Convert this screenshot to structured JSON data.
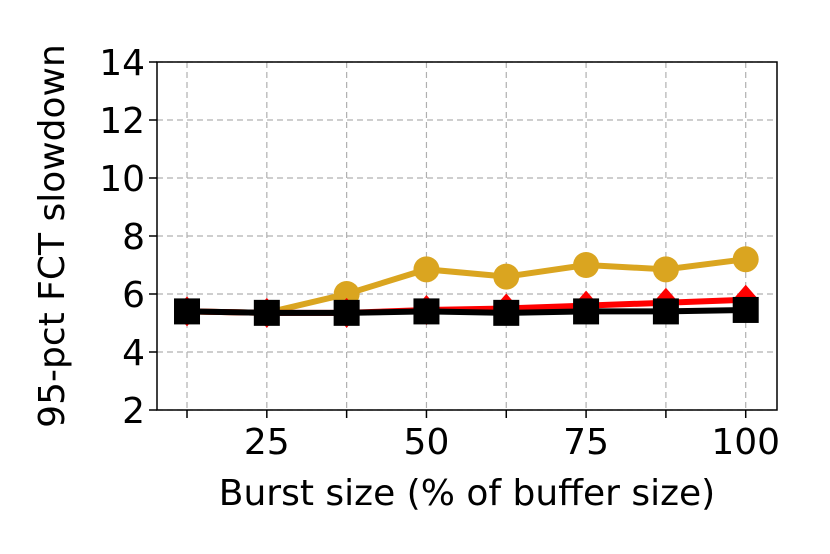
{
  "chart_data": {
    "type": "line",
    "x_label": "Burst size (% of buffer size)",
    "y_label": "95-pct FCT slowdown",
    "x": [
      12.5,
      25,
      37.5,
      50,
      62.5,
      75,
      87.5,
      100
    ],
    "series": [
      {
        "color": "#daa520",
        "marker": "circle",
        "values": [
          5.4,
          5.35,
          6.0,
          6.85,
          6.6,
          7.0,
          6.85,
          7.2
        ]
      },
      {
        "color": "#ff0000",
        "marker": "diamond",
        "values": [
          5.4,
          5.35,
          5.35,
          5.45,
          5.5,
          5.6,
          5.7,
          5.8
        ]
      },
      {
        "color": "#000000",
        "marker": "square",
        "values": [
          5.4,
          5.35,
          5.35,
          5.4,
          5.35,
          5.4,
          5.4,
          5.45
        ]
      }
    ],
    "xlim": [
      7.8,
      104.9
    ],
    "xticks": [
      25,
      50,
      75,
      100
    ],
    "minor_xticks": [
      12.5,
      37.5,
      62.5,
      87.5
    ],
    "ylim": [
      2,
      14
    ],
    "yticks": [
      2,
      4,
      6,
      8,
      10,
      12,
      14
    ],
    "grid": true
  }
}
